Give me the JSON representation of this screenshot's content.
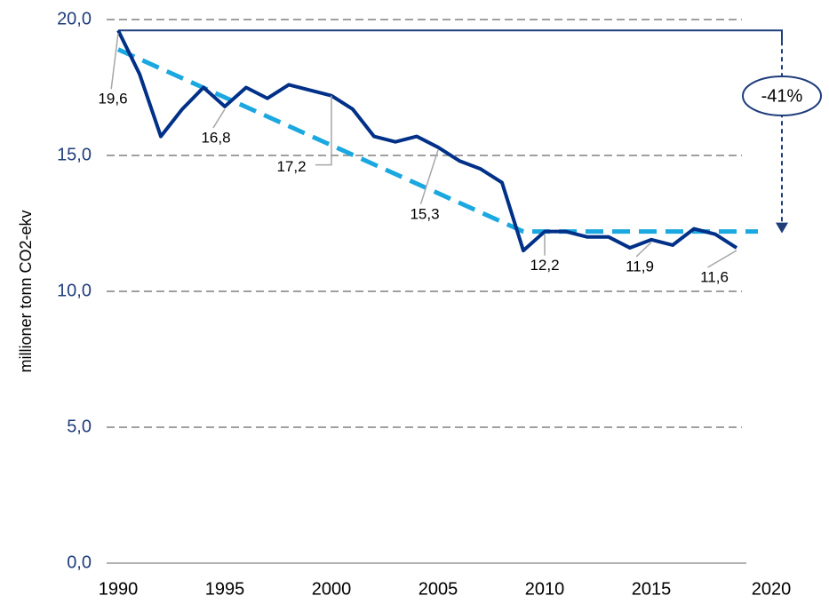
{
  "chart_data": {
    "type": "line",
    "y_label": "millioner tonn CO2-ekv",
    "x": [
      1990,
      1991,
      1992,
      1993,
      1994,
      1995,
      1996,
      1997,
      1998,
      1999,
      2000,
      2001,
      2002,
      2003,
      2004,
      2005,
      2006,
      2007,
      2008,
      2009,
      2010,
      2011,
      2012,
      2013,
      2014,
      2015,
      2016,
      2017,
      2018,
      2019
    ],
    "series": [
      {
        "color": "#003087",
        "values": [
          19.6,
          18.0,
          15.7,
          16.7,
          17.5,
          16.8,
          17.5,
          17.1,
          17.6,
          17.4,
          17.2,
          16.7,
          15.7,
          15.5,
          15.7,
          15.3,
          14.8,
          14.5,
          14.0,
          11.5,
          12.2,
          12.2,
          12.0,
          12.0,
          11.6,
          11.9,
          11.7,
          12.3,
          12.1,
          11.6
        ],
        "value_labels": [
          "19,6",
          null,
          null,
          null,
          null,
          "16,8",
          null,
          null,
          null,
          null,
          "17,2",
          null,
          null,
          null,
          null,
          "15,3",
          null,
          null,
          null,
          null,
          "12,2",
          null,
          null,
          null,
          null,
          "11,9",
          null,
          null,
          null,
          "11,6"
        ]
      },
      {
        "color": "#1ba8e0",
        "dashed": true,
        "x": [
          1990,
          2009,
          2020
        ],
        "values": [
          18.9,
          12.2,
          12.2
        ]
      }
    ],
    "annotation": "-41%",
    "xlim": [
      1990,
      2020
    ],
    "xticks": [
      1990,
      1995,
      2000,
      2005,
      2010,
      2015,
      2020
    ],
    "ylim": [
      0,
      20
    ],
    "yticks": [
      {
        "value": 0,
        "label": "0,0"
      },
      {
        "value": 5,
        "label": "5,0"
      },
      {
        "value": 10,
        "label": "10,0"
      },
      {
        "value": 15,
        "label": "15,0"
      },
      {
        "value": 20,
        "label": "20,0"
      }
    ],
    "grid": true
  }
}
